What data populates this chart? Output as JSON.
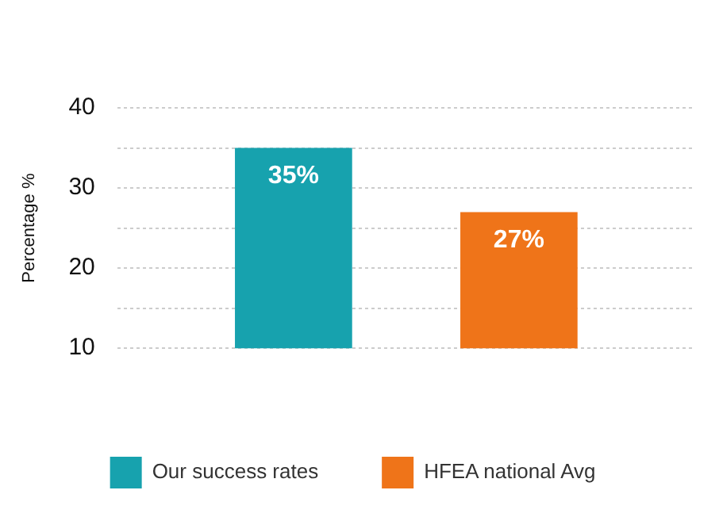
{
  "chart_data": {
    "type": "bar",
    "ylabel": "Percentage %",
    "categories": [
      null
    ],
    "series": [
      {
        "name": "Our success rates",
        "color": "#17a2ae",
        "values": [
          35
        ],
        "value_labels": [
          "35%"
        ]
      },
      {
        "name": "HFEA national Avg",
        "color": "#ef7419",
        "values": [
          27
        ],
        "value_labels": [
          "27%"
        ]
      }
    ],
    "ylim": [
      10,
      40
    ],
    "yticks": [
      10,
      {
        "value": 15,
        "label": null
      },
      20,
      {
        "value": 25,
        "label": null
      },
      30,
      {
        "value": 35,
        "label": null
      },
      40
    ],
    "grid": "y",
    "legend": "bottom"
  }
}
